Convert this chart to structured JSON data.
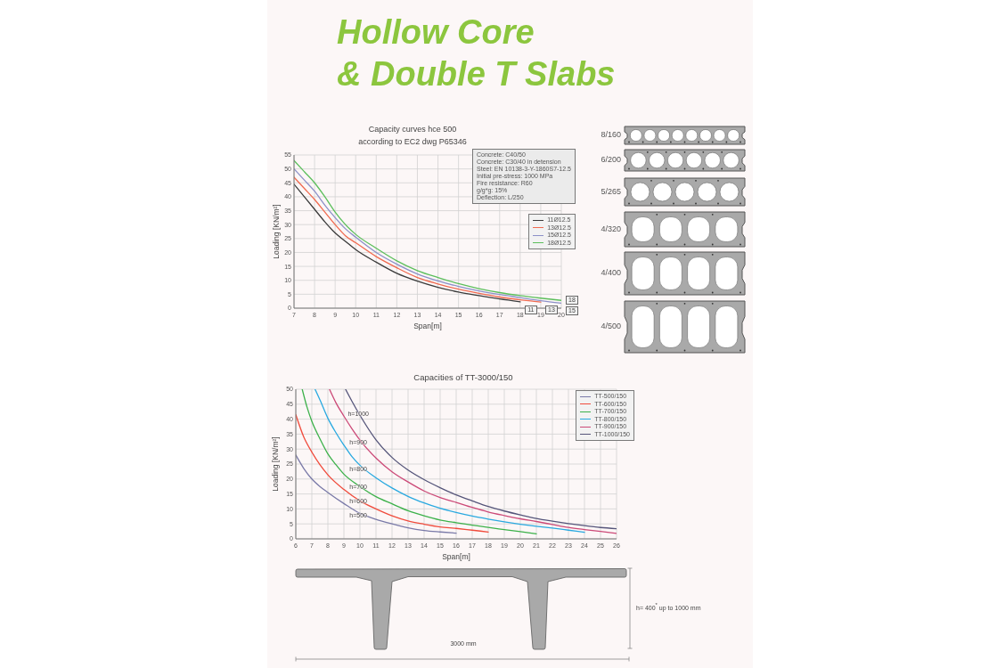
{
  "chart_data": [
    {
      "type": "other",
      "title": "Hollow Core\n& Double T Slabs"
    },
    {
      "type": "line",
      "title": "Capacity curves hce 500\naccording to EC2 dwg P65346",
      "xlabel": "Span[m]",
      "ylabel": "Loading [KN/m²]",
      "x": [
        7,
        7.5,
        8,
        8.5,
        9,
        9.5,
        10,
        11,
        12,
        13,
        14,
        15,
        16,
        17,
        18,
        19,
        20
      ],
      "series": [
        {
          "name": "11Ø12.5",
          "color": "#3a3a3a",
          "values": [
            44.5,
            40,
            35.5,
            31,
            27,
            24,
            21,
            16.5,
            12.5,
            9.7,
            7.5,
            5.8,
            4.5,
            3.3,
            2.3,
            null,
            null
          ]
        },
        {
          "name": "13Ø12.5",
          "color": "#f06a50",
          "values": [
            47,
            43,
            39,
            34.5,
            30,
            26,
            23.5,
            18.5,
            14.5,
            11,
            8.7,
            6.8,
            5.3,
            4,
            3,
            2.2,
            null
          ]
        },
        {
          "name": "15Ø12.5",
          "color": "#8c90c8",
          "values": [
            50,
            46,
            42,
            37,
            32.5,
            28.5,
            25.5,
            20,
            15.8,
            12.3,
            9.8,
            7.8,
            6.2,
            4.9,
            3.8,
            2.7,
            1.8
          ]
        },
        {
          "name": "18Ø12.5",
          "color": "#5cbf5c",
          "values": [
            53,
            49,
            45,
            40,
            34.5,
            30,
            26.5,
            21.5,
            17,
            13.5,
            11,
            8.8,
            7,
            5.6,
            4.5,
            3.6,
            2.8
          ]
        }
      ],
      "xlim": [
        7,
        20
      ],
      "xticks": [
        7,
        8,
        9,
        10,
        11,
        12,
        13,
        14,
        15,
        16,
        17,
        18,
        19,
        20
      ],
      "ylim": [
        0,
        55
      ],
      "yticks": [
        0,
        5,
        10,
        15,
        20,
        25,
        30,
        35,
        40,
        45,
        50,
        55
      ],
      "grid": true,
      "legend": "right",
      "annotations": [
        "Concrete: C40/50",
        "Concrete: C30/40 in detension",
        "Steel: EN 10138-3-Y-1860S7-12.5",
        "Initial pre-stress: 1000 MPa",
        "Fire resistance: R60",
        "g/g*g: 15%",
        "Deflection: L/250",
        {
          "text": "11",
          "x": 18,
          "y": 2.3
        },
        {
          "text": "13",
          "x": 19,
          "y": 2.2
        },
        {
          "text": "15",
          "x": 20,
          "y": 1.8
        },
        {
          "text": "18",
          "x": 20,
          "y": 2.8
        }
      ]
    },
    {
      "type": "other",
      "annotations": [
        "8/160",
        "6/200",
        "5/265",
        "4/320",
        "4/400",
        "4/500"
      ]
    },
    {
      "type": "line",
      "title": "Capacities of TT-3000/150",
      "xlabel": "Span[m]",
      "ylabel": "Loading [KN/m²]",
      "series": [
        {
          "name": "TT-500/150",
          "color": "#7a7aa8",
          "x": [
            6,
            6.5,
            7,
            7.5,
            8,
            9,
            10,
            11,
            12,
            13,
            14,
            15,
            16
          ],
          "values": [
            28,
            23.5,
            20,
            17.5,
            15.5,
            11.8,
            8.5,
            6.5,
            5,
            3.7,
            2.8,
            2.3,
            1.9
          ]
        },
        {
          "name": "TT-600/150",
          "color": "#f04b3c",
          "x": [
            6,
            6.5,
            7,
            7.5,
            8,
            9,
            10,
            11,
            12,
            13,
            14,
            15,
            16,
            17,
            18
          ],
          "values": [
            41.5,
            34,
            29,
            24.8,
            21.4,
            16.5,
            12.7,
            10,
            7.7,
            6,
            4.9,
            4,
            3.5,
            2.9,
            2.3
          ]
        },
        {
          "name": "TT-700/150",
          "color": "#3cb14a",
          "x": [
            6.4,
            6.7,
            7,
            7.5,
            8,
            8.5,
            9,
            10,
            11,
            12,
            13,
            14,
            15,
            16,
            17,
            18,
            19,
            20,
            21
          ],
          "values": [
            50,
            44,
            39.3,
            33.5,
            28.4,
            24.8,
            21.6,
            17.5,
            14.1,
            11.7,
            9.4,
            7.7,
            6.3,
            5.4,
            4.6,
            3.8,
            3.1,
            2.4,
            1.7
          ]
        },
        {
          "name": "TT-800/150",
          "color": "#29a9e0",
          "x": [
            7.2,
            7.5,
            8,
            8.5,
            9,
            9.5,
            10,
            11,
            12,
            13,
            14,
            15,
            16,
            17,
            18,
            19,
            20,
            21,
            22,
            23,
            24
          ],
          "values": [
            50,
            46.5,
            40.3,
            35.5,
            31.3,
            27.5,
            24.6,
            20.4,
            17,
            14.2,
            12,
            10.2,
            8.8,
            7.6,
            6.6,
            5.7,
            4.9,
            4.2,
            3.6,
            2.9,
            2.2
          ]
        },
        {
          "name": "TT-900/150",
          "color": "#cc4a78",
          "x": [
            8.1,
            8.5,
            9,
            9.5,
            10,
            11,
            12,
            13,
            14,
            15,
            16,
            17,
            18,
            19,
            20,
            21,
            22,
            23,
            24,
            25,
            26
          ],
          "values": [
            50,
            45.5,
            41,
            36.8,
            33,
            27,
            22.4,
            19,
            16,
            13.8,
            12.2,
            10.5,
            9,
            7.8,
            6.7,
            5.8,
            4.8,
            3.8,
            3.1,
            2.5,
            1.8
          ]
        },
        {
          "name": "TT-1000/150",
          "color": "#55557a",
          "x": [
            9.1,
            9.5,
            10,
            11,
            12,
            13,
            14,
            15,
            16,
            17,
            18,
            19,
            20,
            21,
            22,
            23,
            24,
            25,
            26
          ],
          "values": [
            50,
            46,
            41.3,
            33.1,
            27.2,
            23,
            19.8,
            17.1,
            14.7,
            12.7,
            10.8,
            9.3,
            8,
            6.8,
            5.9,
            5.1,
            4.4,
            3.8,
            3.4
          ]
        }
      ],
      "xlim": [
        6,
        26
      ],
      "xticks": [
        6,
        7,
        8,
        9,
        10,
        11,
        12,
        13,
        14,
        15,
        16,
        17,
        18,
        19,
        20,
        21,
        22,
        23,
        24,
        25,
        26
      ],
      "ylim": [
        0,
        50
      ],
      "yticks": [
        0,
        5,
        10,
        15,
        20,
        25,
        30,
        35,
        40,
        45,
        50
      ],
      "grid": true,
      "legend": "top right",
      "annotations": [
        {
          "text": "h=1000",
          "x": 9.9,
          "y": 41.8
        },
        {
          "text": "h=900",
          "x": 9.9,
          "y": 32
        },
        {
          "text": "h=800",
          "x": 9.9,
          "y": 23.2
        },
        {
          "text": "h=700",
          "x": 9.9,
          "y": 17.4
        },
        {
          "text": "h=600",
          "x": 9.9,
          "y": 12.5
        },
        {
          "text": "h=500",
          "x": 9.9,
          "y": 7.7
        }
      ]
    },
    {
      "type": "other",
      "annotations": [
        "3000 mm",
        "h= 400$^{*}$ up to 1000 mm"
      ]
    }
  ]
}
